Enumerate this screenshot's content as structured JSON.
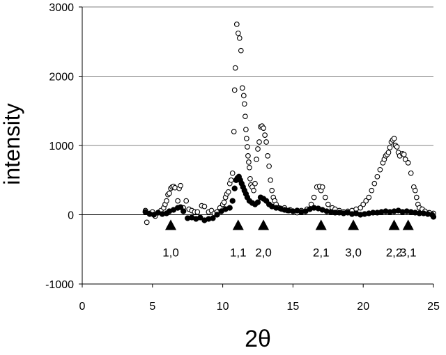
{
  "chart_data": {
    "type": "scatter",
    "title": "",
    "xlabel": "2θ",
    "ylabel": "intensity",
    "xlim": [
      0,
      25
    ],
    "ylim": [
      -1000,
      3000
    ],
    "x_ticks": [
      "0",
      "5",
      "10",
      "15",
      "20",
      "25"
    ],
    "y_ticks": [
      "-1000",
      "0",
      "1000",
      "2000",
      "3000"
    ],
    "grid": "horizontal",
    "series": [
      {
        "marker": "open-circle",
        "points": [
          [
            4.5,
            60
          ],
          [
            4.6,
            -110
          ],
          [
            4.8,
            20
          ],
          [
            5.0,
            40
          ],
          [
            5.2,
            -20
          ],
          [
            5.4,
            30
          ],
          [
            5.6,
            60
          ],
          [
            5.8,
            100
          ],
          [
            5.9,
            150
          ],
          [
            6.0,
            200
          ],
          [
            6.1,
            290
          ],
          [
            6.2,
            310
          ],
          [
            6.3,
            380
          ],
          [
            6.4,
            400
          ],
          [
            6.5,
            410
          ],
          [
            6.6,
            390
          ],
          [
            6.8,
            200
          ],
          [
            6.9,
            380
          ],
          [
            7.0,
            420
          ],
          [
            7.2,
            100
          ],
          [
            7.4,
            200
          ],
          [
            7.6,
            80
          ],
          [
            7.8,
            60
          ],
          [
            8.0,
            40
          ],
          [
            8.2,
            40
          ],
          [
            8.5,
            130
          ],
          [
            8.7,
            120
          ],
          [
            9.0,
            40
          ],
          [
            9.2,
            60
          ],
          [
            9.4,
            20
          ],
          [
            9.6,
            40
          ],
          [
            9.8,
            100
          ],
          [
            10.0,
            150
          ],
          [
            10.1,
            180
          ],
          [
            10.2,
            250
          ],
          [
            10.3,
            300
          ],
          [
            10.4,
            330
          ],
          [
            10.5,
            450
          ],
          [
            10.6,
            500
          ],
          [
            10.7,
            600
          ],
          [
            10.8,
            1200
          ],
          [
            10.85,
            1800
          ],
          [
            10.9,
            2120
          ],
          [
            11.0,
            2750
          ],
          [
            11.1,
            2620
          ],
          [
            11.2,
            2550
          ],
          [
            11.3,
            2370
          ],
          [
            11.4,
            1830
          ],
          [
            11.5,
            1720
          ],
          [
            11.55,
            1600
          ],
          [
            11.6,
            1420
          ],
          [
            11.65,
            1230
          ],
          [
            11.7,
            1100
          ],
          [
            11.75,
            980
          ],
          [
            11.8,
            850
          ],
          [
            11.85,
            760
          ],
          [
            11.9,
            680
          ],
          [
            11.95,
            520
          ],
          [
            12.0,
            430
          ],
          [
            12.1,
            400
          ],
          [
            12.2,
            350
          ],
          [
            12.3,
            450
          ],
          [
            12.4,
            800
          ],
          [
            12.5,
            950
          ],
          [
            12.6,
            1050
          ],
          [
            12.7,
            1270
          ],
          [
            12.8,
            1280
          ],
          [
            12.9,
            1250
          ],
          [
            13.0,
            1150
          ],
          [
            13.1,
            1050
          ],
          [
            13.2,
            850
          ],
          [
            13.3,
            700
          ],
          [
            13.4,
            500
          ],
          [
            13.5,
            350
          ],
          [
            13.6,
            250
          ],
          [
            13.7,
            200
          ],
          [
            13.8,
            150
          ],
          [
            14.0,
            100
          ],
          [
            14.2,
            80
          ],
          [
            14.4,
            100
          ],
          [
            14.6,
            60
          ],
          [
            14.8,
            70
          ],
          [
            15.0,
            50
          ],
          [
            15.3,
            30
          ],
          [
            15.6,
            60
          ],
          [
            16.0,
            80
          ],
          [
            16.3,
            150
          ],
          [
            16.5,
            250
          ],
          [
            16.7,
            400
          ],
          [
            16.9,
            410
          ],
          [
            17.0,
            350
          ],
          [
            17.1,
            400
          ],
          [
            17.3,
            250
          ],
          [
            17.5,
            150
          ],
          [
            17.8,
            100
          ],
          [
            18.0,
            80
          ],
          [
            18.3,
            60
          ],
          [
            18.6,
            40
          ],
          [
            18.9,
            50
          ],
          [
            19.2,
            60
          ],
          [
            19.5,
            80
          ],
          [
            19.8,
            100
          ],
          [
            20.0,
            150
          ],
          [
            20.2,
            200
          ],
          [
            20.4,
            250
          ],
          [
            20.6,
            350
          ],
          [
            20.8,
            450
          ],
          [
            21.0,
            550
          ],
          [
            21.2,
            650
          ],
          [
            21.4,
            750
          ],
          [
            21.5,
            800
          ],
          [
            21.6,
            850
          ],
          [
            21.7,
            870
          ],
          [
            21.8,
            900
          ],
          [
            21.9,
            970
          ],
          [
            22.0,
            1050
          ],
          [
            22.1,
            1080
          ],
          [
            22.2,
            1100
          ],
          [
            22.3,
            1000
          ],
          [
            22.4,
            980
          ],
          [
            22.5,
            900
          ],
          [
            22.6,
            850
          ],
          [
            22.8,
            880
          ],
          [
            22.9,
            870
          ],
          [
            23.0,
            800
          ],
          [
            23.2,
            750
          ],
          [
            23.4,
            600
          ],
          [
            23.6,
            400
          ],
          [
            23.7,
            350
          ],
          [
            23.8,
            250
          ],
          [
            23.9,
            150
          ],
          [
            24.0,
            100
          ],
          [
            24.2,
            80
          ],
          [
            24.4,
            50
          ],
          [
            24.7,
            30
          ],
          [
            25.0,
            20
          ]
        ]
      },
      {
        "marker": "filled-circle",
        "points": [
          [
            4.5,
            40
          ],
          [
            4.8,
            10
          ],
          [
            5.1,
            0
          ],
          [
            5.4,
            30
          ],
          [
            5.7,
            10
          ],
          [
            6.0,
            20
          ],
          [
            6.2,
            50
          ],
          [
            6.5,
            70
          ],
          [
            6.8,
            100
          ],
          [
            7.0,
            110
          ],
          [
            7.2,
            50
          ],
          [
            7.5,
            -50
          ],
          [
            7.8,
            -40
          ],
          [
            8.1,
            -60
          ],
          [
            8.4,
            -40
          ],
          [
            8.7,
            -80
          ],
          [
            9.0,
            -60
          ],
          [
            9.3,
            -50
          ],
          [
            9.6,
            0
          ],
          [
            9.9,
            50
          ],
          [
            10.2,
            80
          ],
          [
            10.5,
            100
          ],
          [
            10.7,
            200
          ],
          [
            10.85,
            380
          ],
          [
            10.95,
            500
          ],
          [
            11.05,
            530
          ],
          [
            11.15,
            550
          ],
          [
            11.25,
            500
          ],
          [
            11.35,
            450
          ],
          [
            11.45,
            400
          ],
          [
            11.55,
            350
          ],
          [
            11.65,
            300
          ],
          [
            11.75,
            250
          ],
          [
            11.9,
            200
          ],
          [
            12.1,
            170
          ],
          [
            12.3,
            150
          ],
          [
            12.5,
            180
          ],
          [
            12.7,
            250
          ],
          [
            12.9,
            230
          ],
          [
            13.1,
            200
          ],
          [
            13.3,
            150
          ],
          [
            13.5,
            120
          ],
          [
            13.8,
            100
          ],
          [
            14.1,
            90
          ],
          [
            14.4,
            70
          ],
          [
            14.7,
            60
          ],
          [
            15.0,
            50
          ],
          [
            15.3,
            60
          ],
          [
            15.6,
            40
          ],
          [
            15.9,
            50
          ],
          [
            16.2,
            80
          ],
          [
            16.5,
            100
          ],
          [
            16.8,
            90
          ],
          [
            17.1,
            70
          ],
          [
            17.4,
            50
          ],
          [
            17.7,
            40
          ],
          [
            18.0,
            30
          ],
          [
            18.3,
            30
          ],
          [
            18.6,
            20
          ],
          [
            18.9,
            30
          ],
          [
            19.2,
            10
          ],
          [
            19.5,
            20
          ],
          [
            19.8,
            0
          ],
          [
            20.1,
            10
          ],
          [
            20.4,
            20
          ],
          [
            20.7,
            30
          ],
          [
            21.0,
            30
          ],
          [
            21.3,
            40
          ],
          [
            21.6,
            50
          ],
          [
            21.9,
            40
          ],
          [
            22.2,
            50
          ],
          [
            22.5,
            60
          ],
          [
            22.8,
            40
          ],
          [
            23.1,
            50
          ],
          [
            23.4,
            40
          ],
          [
            23.7,
            30
          ],
          [
            24.0,
            20
          ],
          [
            24.3,
            20
          ],
          [
            24.6,
            10
          ],
          [
            24.9,
            0
          ],
          [
            25.0,
            -30
          ]
        ]
      }
    ],
    "peak_markers": [
      {
        "x": 6.3,
        "label": "1,0"
      },
      {
        "x": 11.1,
        "label": "1,1"
      },
      {
        "x": 12.9,
        "label": "2,0"
      },
      {
        "x": 17.0,
        "label": "2,1"
      },
      {
        "x": 19.3,
        "label": "3,0"
      },
      {
        "x": 22.2,
        "label": "2,2"
      },
      {
        "x": 23.2,
        "label": "3,1"
      }
    ],
    "peak_marker_y": -150
  }
}
